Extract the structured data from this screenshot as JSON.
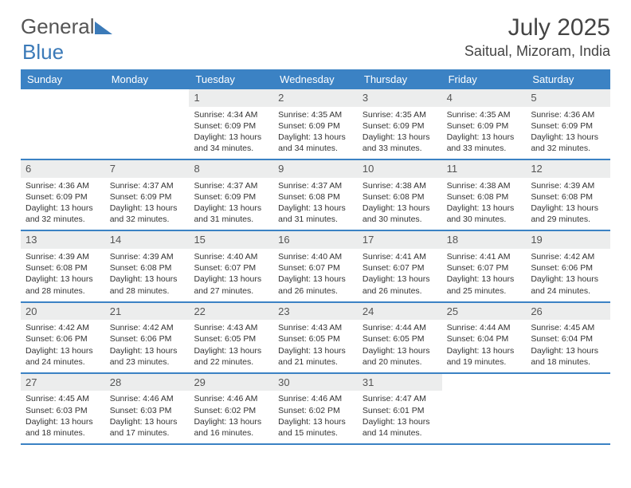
{
  "logo": {
    "text1": "General",
    "text2": "Blue"
  },
  "title": "July 2025",
  "location": "Saitual, Mizoram, India",
  "colors": {
    "header_bg": "#3b82c4",
    "daynum_bg": "#eceded",
    "border": "#3b82c4",
    "logo_blue": "#3b7ab8"
  },
  "weekdays": [
    "Sunday",
    "Monday",
    "Tuesday",
    "Wednesday",
    "Thursday",
    "Friday",
    "Saturday"
  ],
  "weeks": [
    [
      {
        "n": "",
        "empty": true
      },
      {
        "n": "",
        "empty": true
      },
      {
        "n": "1",
        "sr": "4:34 AM",
        "ss": "6:09 PM",
        "dl": "13 hours and 34 minutes."
      },
      {
        "n": "2",
        "sr": "4:35 AM",
        "ss": "6:09 PM",
        "dl": "13 hours and 34 minutes."
      },
      {
        "n": "3",
        "sr": "4:35 AM",
        "ss": "6:09 PM",
        "dl": "13 hours and 33 minutes."
      },
      {
        "n": "4",
        "sr": "4:35 AM",
        "ss": "6:09 PM",
        "dl": "13 hours and 33 minutes."
      },
      {
        "n": "5",
        "sr": "4:36 AM",
        "ss": "6:09 PM",
        "dl": "13 hours and 32 minutes."
      }
    ],
    [
      {
        "n": "6",
        "sr": "4:36 AM",
        "ss": "6:09 PM",
        "dl": "13 hours and 32 minutes."
      },
      {
        "n": "7",
        "sr": "4:37 AM",
        "ss": "6:09 PM",
        "dl": "13 hours and 32 minutes."
      },
      {
        "n": "8",
        "sr": "4:37 AM",
        "ss": "6:09 PM",
        "dl": "13 hours and 31 minutes."
      },
      {
        "n": "9",
        "sr": "4:37 AM",
        "ss": "6:08 PM",
        "dl": "13 hours and 31 minutes."
      },
      {
        "n": "10",
        "sr": "4:38 AM",
        "ss": "6:08 PM",
        "dl": "13 hours and 30 minutes."
      },
      {
        "n": "11",
        "sr": "4:38 AM",
        "ss": "6:08 PM",
        "dl": "13 hours and 30 minutes."
      },
      {
        "n": "12",
        "sr": "4:39 AM",
        "ss": "6:08 PM",
        "dl": "13 hours and 29 minutes."
      }
    ],
    [
      {
        "n": "13",
        "sr": "4:39 AM",
        "ss": "6:08 PM",
        "dl": "13 hours and 28 minutes."
      },
      {
        "n": "14",
        "sr": "4:39 AM",
        "ss": "6:08 PM",
        "dl": "13 hours and 28 minutes."
      },
      {
        "n": "15",
        "sr": "4:40 AM",
        "ss": "6:07 PM",
        "dl": "13 hours and 27 minutes."
      },
      {
        "n": "16",
        "sr": "4:40 AM",
        "ss": "6:07 PM",
        "dl": "13 hours and 26 minutes."
      },
      {
        "n": "17",
        "sr": "4:41 AM",
        "ss": "6:07 PM",
        "dl": "13 hours and 26 minutes."
      },
      {
        "n": "18",
        "sr": "4:41 AM",
        "ss": "6:07 PM",
        "dl": "13 hours and 25 minutes."
      },
      {
        "n": "19",
        "sr": "4:42 AM",
        "ss": "6:06 PM",
        "dl": "13 hours and 24 minutes."
      }
    ],
    [
      {
        "n": "20",
        "sr": "4:42 AM",
        "ss": "6:06 PM",
        "dl": "13 hours and 24 minutes."
      },
      {
        "n": "21",
        "sr": "4:42 AM",
        "ss": "6:06 PM",
        "dl": "13 hours and 23 minutes."
      },
      {
        "n": "22",
        "sr": "4:43 AM",
        "ss": "6:05 PM",
        "dl": "13 hours and 22 minutes."
      },
      {
        "n": "23",
        "sr": "4:43 AM",
        "ss": "6:05 PM",
        "dl": "13 hours and 21 minutes."
      },
      {
        "n": "24",
        "sr": "4:44 AM",
        "ss": "6:05 PM",
        "dl": "13 hours and 20 minutes."
      },
      {
        "n": "25",
        "sr": "4:44 AM",
        "ss": "6:04 PM",
        "dl": "13 hours and 19 minutes."
      },
      {
        "n": "26",
        "sr": "4:45 AM",
        "ss": "6:04 PM",
        "dl": "13 hours and 18 minutes."
      }
    ],
    [
      {
        "n": "27",
        "sr": "4:45 AM",
        "ss": "6:03 PM",
        "dl": "13 hours and 18 minutes."
      },
      {
        "n": "28",
        "sr": "4:46 AM",
        "ss": "6:03 PM",
        "dl": "13 hours and 17 minutes."
      },
      {
        "n": "29",
        "sr": "4:46 AM",
        "ss": "6:02 PM",
        "dl": "13 hours and 16 minutes."
      },
      {
        "n": "30",
        "sr": "4:46 AM",
        "ss": "6:02 PM",
        "dl": "13 hours and 15 minutes."
      },
      {
        "n": "31",
        "sr": "4:47 AM",
        "ss": "6:01 PM",
        "dl": "13 hours and 14 minutes."
      },
      {
        "n": "",
        "empty": true
      },
      {
        "n": "",
        "empty": true
      }
    ]
  ],
  "labels": {
    "sunrise": "Sunrise: ",
    "sunset": "Sunset: ",
    "daylight": "Daylight: "
  }
}
